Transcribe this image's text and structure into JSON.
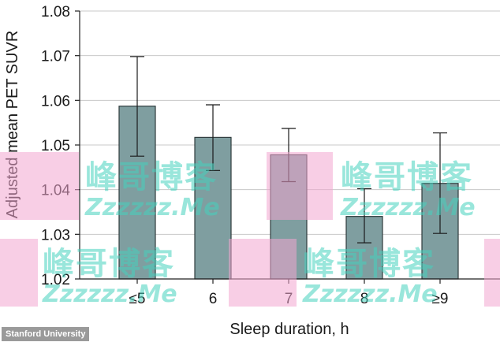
{
  "chart_data": {
    "type": "bar",
    "categories": [
      "≤5",
      "6",
      "7",
      "8",
      "≥9"
    ],
    "values": [
      1.0587,
      1.0517,
      1.0478,
      1.034,
      1.0414
    ],
    "error_low": [
      1.0475,
      1.0443,
      1.0418,
      1.0281,
      1.0302
    ],
    "error_high": [
      1.0698,
      1.059,
      1.0537,
      1.0402,
      1.0527
    ],
    "xlabel": "Sleep duration, h",
    "ylabel": "Adjusted mean PET SUVR",
    "ylim": [
      1.02,
      1.08
    ],
    "yticks": [
      "1.02",
      "1.03",
      "1.04",
      "1.05",
      "1.06",
      "1.07",
      "1.08"
    ],
    "grid": true,
    "bar_color": "#7f9ea0",
    "bar_edge_color": "#2f3b3c"
  },
  "credit": "Stanford University",
  "watermarks": [
    {
      "cn": "峰哥博客",
      "en": "Zzzzzz.Me"
    },
    {
      "cn": "峰哥博客",
      "en": "Zzzzzz.Me"
    },
    {
      "cn": "峰哥博客",
      "en": "Zzzzzz.Me"
    },
    {
      "cn": "峰哥博客",
      "en": "Zzzzzz.Me"
    }
  ]
}
